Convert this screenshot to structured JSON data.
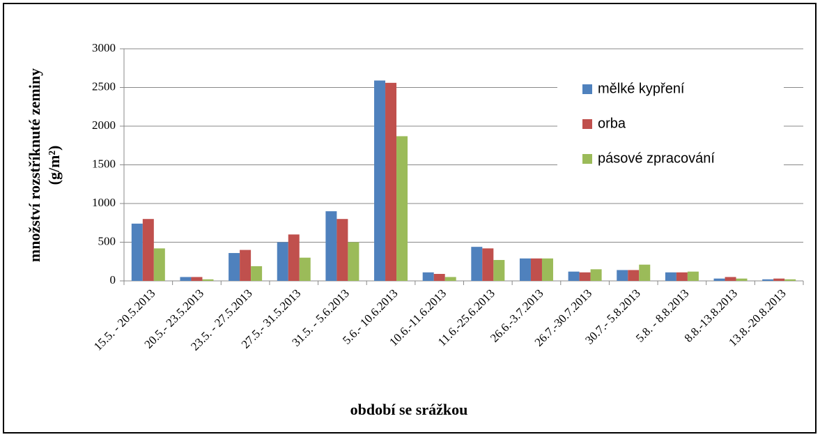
{
  "chart_data": {
    "type": "bar",
    "ylabel": [
      "množství rozstříknuté zeminy",
      "(g/m²)"
    ],
    "xlabel": "období se srážkou",
    "categories": [
      "15.5. - 20.5.2013",
      "20.5.- 23.5.2013",
      "23.5. - 27.5.2013",
      "27.5.- 31.5.2013",
      "31.5. - 5.6.2013",
      "5.6.- 10.6.2013",
      "10.6.-11.6.2013",
      "11.6.-25.6.2013",
      "26.6.-3.7.2013",
      "26.7.-30.7.2013",
      "30.7.- 5.8.2013",
      "5.8. - 8.8.2013",
      "8.8.-13.8.2013",
      "13.8.-20.8.2013"
    ],
    "series": [
      {
        "name": "mělké kypření",
        "color": "#4f81bd",
        "values": [
          740,
          50,
          360,
          500,
          900,
          2590,
          110,
          440,
          290,
          120,
          140,
          110,
          30,
          20
        ]
      },
      {
        "name": "orba",
        "color": "#c0504d",
        "values": [
          800,
          50,
          400,
          600,
          800,
          2560,
          90,
          420,
          290,
          110,
          140,
          110,
          50,
          30
        ]
      },
      {
        "name": "pásové zpracování",
        "color": "#9bbb59",
        "values": [
          420,
          20,
          190,
          300,
          500,
          1870,
          50,
          270,
          290,
          150,
          210,
          120,
          30,
          20
        ]
      }
    ],
    "ylim": [
      0,
      3000
    ],
    "yticks": [
      0,
      500,
      1000,
      1500,
      2000,
      2500,
      3000
    ],
    "grid": true,
    "legend": "upper right"
  }
}
